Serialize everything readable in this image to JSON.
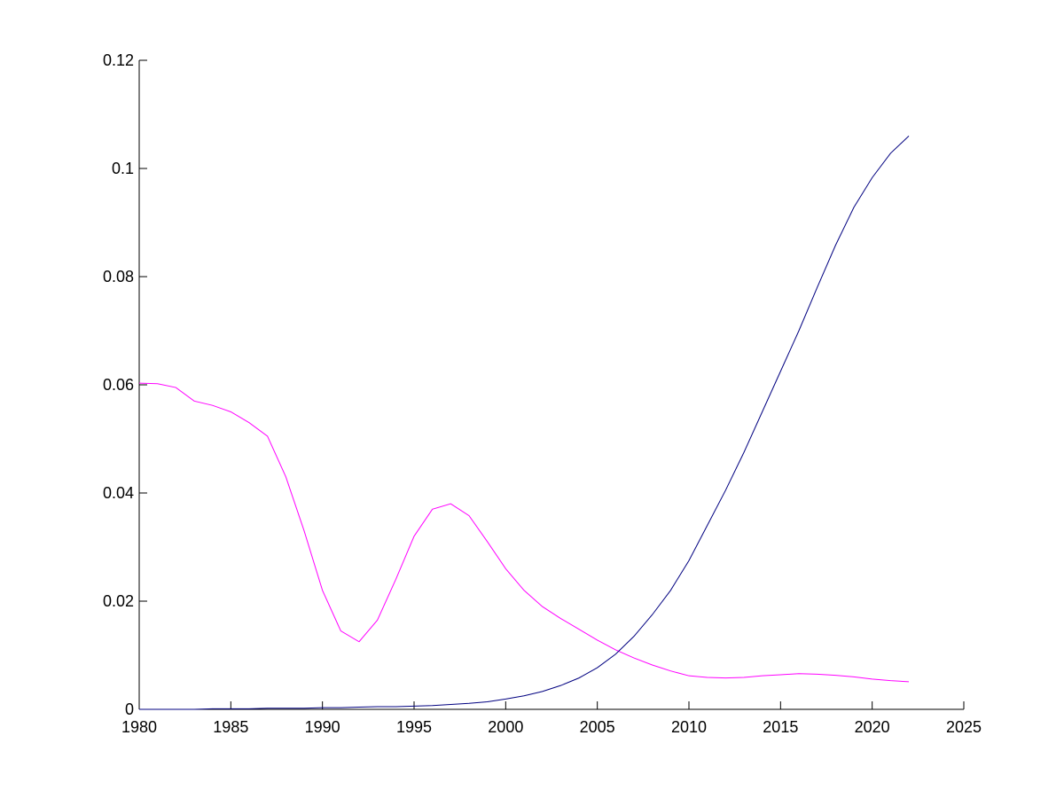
{
  "chart_data": {
    "type": "line",
    "x": [
      1980,
      1981,
      1982,
      1983,
      1984,
      1985,
      1986,
      1987,
      1988,
      1989,
      1990,
      1991,
      1992,
      1993,
      1994,
      1995,
      1996,
      1997,
      1998,
      1999,
      2000,
      2001,
      2002,
      2003,
      2004,
      2005,
      2006,
      2007,
      2008,
      2009,
      2010,
      2011,
      2012,
      2013,
      2014,
      2015,
      2016,
      2017,
      2018,
      2019,
      2020,
      2021,
      2022
    ],
    "series": [
      {
        "color": "#ff00ff",
        "values": [
          0.0603,
          0.0602,
          0.0595,
          0.057,
          0.0562,
          0.055,
          0.053,
          0.0505,
          0.043,
          0.033,
          0.022,
          0.0145,
          0.0125,
          0.0165,
          0.024,
          0.032,
          0.037,
          0.038,
          0.0358,
          0.031,
          0.026,
          0.022,
          0.019,
          0.0168,
          0.0148,
          0.0128,
          0.011,
          0.0095,
          0.0082,
          0.0071,
          0.0062,
          0.0059,
          0.0058,
          0.0059,
          0.0062,
          0.0064,
          0.0066,
          0.0065,
          0.0063,
          0.006,
          0.0056,
          0.0053,
          0.0051
        ]
      },
      {
        "color": "#000080",
        "values": [
          0,
          0,
          0,
          0,
          0.0001,
          0.0001,
          0.0001,
          0.0002,
          0.0002,
          0.0002,
          0.0003,
          0.0003,
          0.0004,
          0.0005,
          0.0005,
          0.0006,
          0.0007,
          0.0009,
          0.0011,
          0.0014,
          0.0019,
          0.0025,
          0.0033,
          0.0044,
          0.0058,
          0.0077,
          0.0102,
          0.0135,
          0.0175,
          0.022,
          0.0275,
          0.034,
          0.0405,
          0.0475,
          0.055,
          0.0625,
          0.07,
          0.078,
          0.0858,
          0.0928,
          0.0983,
          0.1028,
          0.106
        ]
      }
    ],
    "xlim": [
      1980,
      2025
    ],
    "xticks": [
      1980,
      1985,
      1990,
      1995,
      2000,
      2005,
      2010,
      2015,
      2020,
      2025
    ],
    "ylim": [
      0,
      0.12
    ],
    "yticks": [
      0,
      0.02,
      0.04,
      0.06,
      0.08,
      0.1,
      0.12
    ]
  }
}
